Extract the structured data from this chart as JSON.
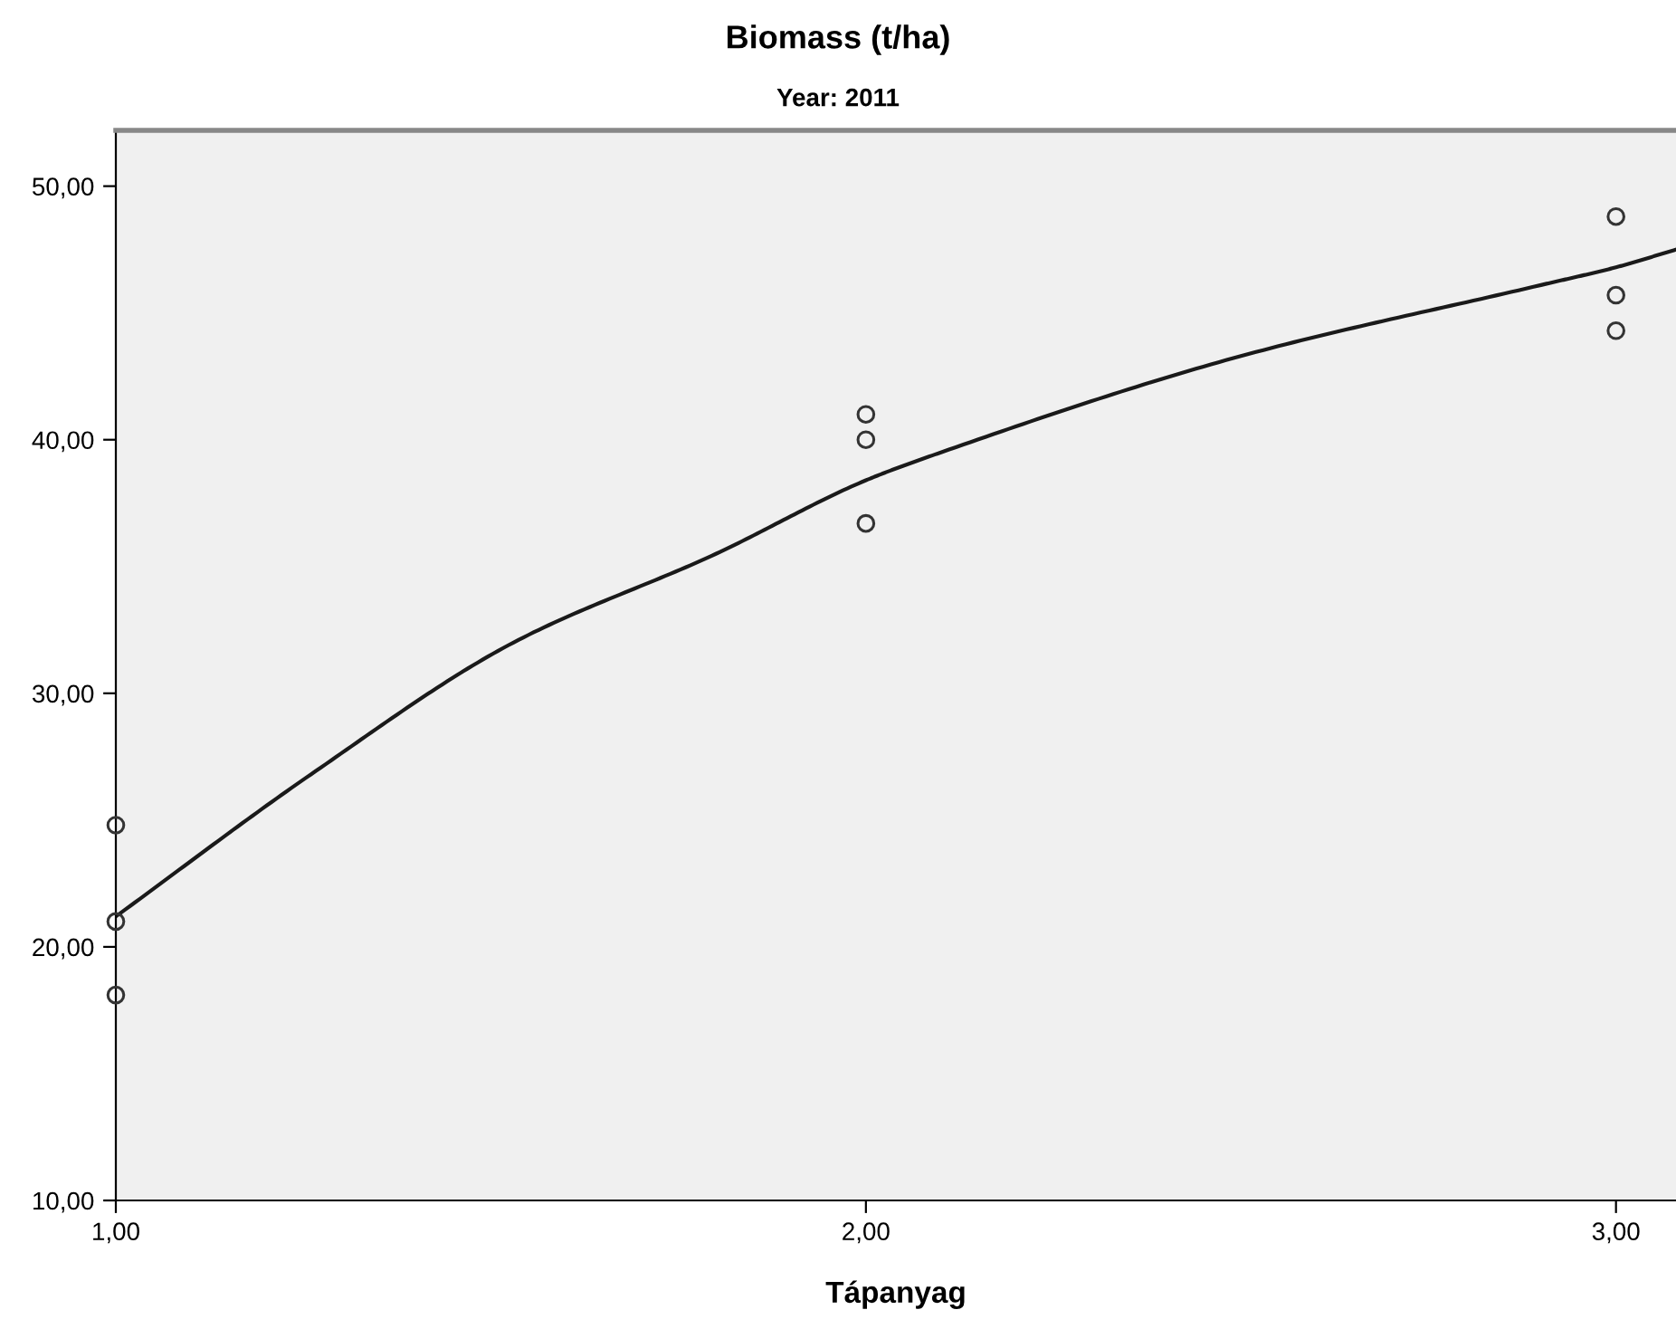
{
  "chart_data": {
    "type": "scatter",
    "title": "Biomass (t/ha)",
    "subtitle": "Year: 2011",
    "xlabel": "Tápanyag",
    "xlim": [
      1,
      3.08
    ],
    "ylim": [
      10,
      52.2
    ],
    "xticks": [
      {
        "value": 1,
        "label": "1,00"
      },
      {
        "value": 2,
        "label": "2,00"
      },
      {
        "value": 3,
        "label": "3,00"
      }
    ],
    "yticks": [
      {
        "value": 10,
        "label": "10,00"
      },
      {
        "value": 20,
        "label": "20,00"
      },
      {
        "value": 30,
        "label": "30,00"
      },
      {
        "value": 40,
        "label": "40,00"
      },
      {
        "value": 50,
        "label": "50,00"
      }
    ],
    "grid": false,
    "legend": false,
    "series": [
      {
        "marker": "circle",
        "color": "#333333",
        "x": [
          1,
          1,
          1,
          2,
          2,
          2,
          3,
          3,
          3
        ],
        "values": [
          24.8,
          21.0,
          18.1,
          41.0,
          40.0,
          36.7,
          48.8,
          45.7,
          44.3
        ]
      },
      {
        "type": "line",
        "marker": "none",
        "line_style": "solid",
        "color": "#1a1a1a",
        "x": [
          1,
          1.26,
          1.53,
          1.8,
          2,
          2.1,
          2.5,
          2.9,
          3,
          3.08
        ],
        "values": [
          21.2,
          26.8,
          32.0,
          35.5,
          38.4,
          39.5,
          43.3,
          46.1,
          46.8,
          47.5
        ]
      }
    ]
  }
}
